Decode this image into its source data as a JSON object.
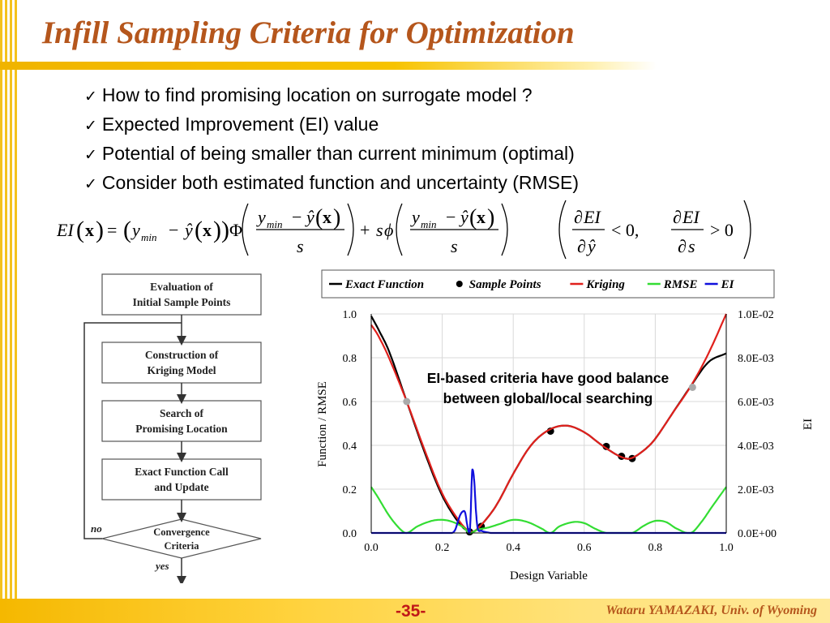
{
  "slide": {
    "title": "Infill Sampling Criteria for Optimization",
    "bullets": [
      "How to find promising location on surrogate model ?",
      "Expected Improvement (EI) value",
      "Potential of being smaller than current minimum (optimal)",
      "Consider both estimated function and uncertainty (RMSE)"
    ],
    "check_glyph": "✓",
    "page_number": "-35-",
    "author": "Wataru YAMAZAKI, Univ. of Wyoming",
    "colors": {
      "title": "#b5561c",
      "accent_bar": "#f4c21c",
      "page_number": "#c01818"
    }
  },
  "equation": {
    "lhs": "EI",
    "x": "x",
    "eq": "=",
    "y": "y",
    "yhat": "ŷ",
    "min": "min",
    "minus": "−",
    "plus": "+",
    "s": "s",
    "Phi": "Φ",
    "phi": "ϕ",
    "partial": "∂",
    "lt": "< 0,",
    "gt": "> 0"
  },
  "flowchart": {
    "steps": [
      [
        "Evaluation of",
        "Initial Sample Points"
      ],
      [
        "Construction of",
        "Kriging Model"
      ],
      [
        "Search of",
        "Promising Location"
      ],
      [
        "Exact Function Call",
        "and Update"
      ]
    ],
    "decision": [
      "Convergence",
      "Criteria"
    ],
    "no_label": "no",
    "yes_label": "yes"
  },
  "chart_data": {
    "type": "line",
    "xlabel": "Design Variable",
    "ylabel": "Function / RMSE",
    "y2label": "EI",
    "xlim": [
      0,
      1
    ],
    "ylim": [
      0,
      1
    ],
    "y2lim": [
      0,
      0.01
    ],
    "x_ticks": [
      "0.0",
      "0.2",
      "0.4",
      "0.6",
      "0.8",
      "1.0"
    ],
    "y_ticks": [
      "0.0",
      "0.2",
      "0.4",
      "0.6",
      "0.8",
      "1.0"
    ],
    "y2_ticks": [
      "0.0E+00",
      "2.0E-03",
      "4.0E-03",
      "6.0E-03",
      "8.0E-03",
      "1.0E-02"
    ],
    "grid": true,
    "legend_position": "top",
    "annotation": [
      "EI-based criteria have good balance",
      "between global/local searching"
    ],
    "series": [
      {
        "name": "Exact Function",
        "color": "#000000",
        "axis": "left",
        "x": [
          0,
          0.02,
          0.05,
          0.1,
          0.15,
          0.2,
          0.25,
          0.28,
          0.3,
          0.35,
          0.4,
          0.45,
          0.5,
          0.55,
          0.6,
          0.65,
          0.7,
          0.73,
          0.77,
          0.8,
          0.85,
          0.9,
          0.95,
          1.0
        ],
        "y": [
          0.99,
          0.93,
          0.83,
          0.6,
          0.37,
          0.17,
          0.04,
          0.005,
          0.02,
          0.12,
          0.27,
          0.4,
          0.47,
          0.49,
          0.46,
          0.4,
          0.35,
          0.34,
          0.38,
          0.43,
          0.55,
          0.67,
          0.78,
          0.82
        ]
      },
      {
        "name": "Sample Points",
        "color": "#000000",
        "type": "scatter",
        "axis": "left",
        "x": [
          0.277,
          0.31,
          0.505,
          0.662,
          0.705,
          0.735
        ],
        "y": [
          0.005,
          0.03,
          0.465,
          0.395,
          0.35,
          0.34
        ]
      },
      {
        "name": "Kriging",
        "color": "#e0201c",
        "axis": "left",
        "x": [
          0,
          0.02,
          0.05,
          0.1,
          0.15,
          0.2,
          0.25,
          0.28,
          0.3,
          0.35,
          0.4,
          0.45,
          0.5,
          0.55,
          0.6,
          0.65,
          0.7,
          0.73,
          0.77,
          0.8,
          0.85,
          0.9,
          0.95,
          1.0
        ],
        "y": [
          0.95,
          0.9,
          0.8,
          0.6,
          0.38,
          0.18,
          0.05,
          0.005,
          0.02,
          0.12,
          0.27,
          0.4,
          0.47,
          0.49,
          0.46,
          0.4,
          0.35,
          0.34,
          0.38,
          0.43,
          0.55,
          0.67,
          0.82,
          1.0
        ]
      },
      {
        "name": "RMSE",
        "color": "#33dd33",
        "axis": "left",
        "x": [
          0,
          0.02,
          0.05,
          0.08,
          0.1,
          0.13,
          0.17,
          0.2,
          0.23,
          0.26,
          0.277,
          0.3,
          0.33,
          0.36,
          0.4,
          0.44,
          0.48,
          0.505,
          0.53,
          0.57,
          0.6,
          0.63,
          0.662,
          0.7,
          0.735,
          0.77,
          0.8,
          0.83,
          0.86,
          0.9,
          0.93,
          0.96,
          1.0
        ],
        "y": [
          0.21,
          0.16,
          0.08,
          0.02,
          0.0,
          0.03,
          0.055,
          0.06,
          0.05,
          0.025,
          0.0,
          0.015,
          0.025,
          0.04,
          0.06,
          0.05,
          0.02,
          0.0,
          0.03,
          0.05,
          0.045,
          0.02,
          0.0,
          0.0,
          0.0,
          0.035,
          0.055,
          0.05,
          0.02,
          0.0,
          0.05,
          0.12,
          0.21
        ]
      },
      {
        "name": "EI",
        "color": "#1010dd",
        "axis": "right",
        "x": [
          0,
          0.22,
          0.235,
          0.25,
          0.26,
          0.265,
          0.27,
          0.277,
          0.28,
          0.283,
          0.285,
          0.29,
          0.295,
          0.3,
          0.31,
          0.32,
          0.34,
          1.0
        ],
        "y": [
          0,
          0,
          0.0001,
          0.0008,
          0.001,
          0.0009,
          0.0004,
          0.0,
          0.0008,
          0.0024,
          0.0029,
          0.0024,
          0.001,
          0.0002,
          0.0001,
          5e-05,
          0,
          0
        ]
      },
      {
        "name": "",
        "color": "#aaaaaa",
        "type": "scatter",
        "axis": "left",
        "x": [
          0.1,
          0.905
        ],
        "y": [
          0.6,
          0.665
        ]
      }
    ]
  }
}
